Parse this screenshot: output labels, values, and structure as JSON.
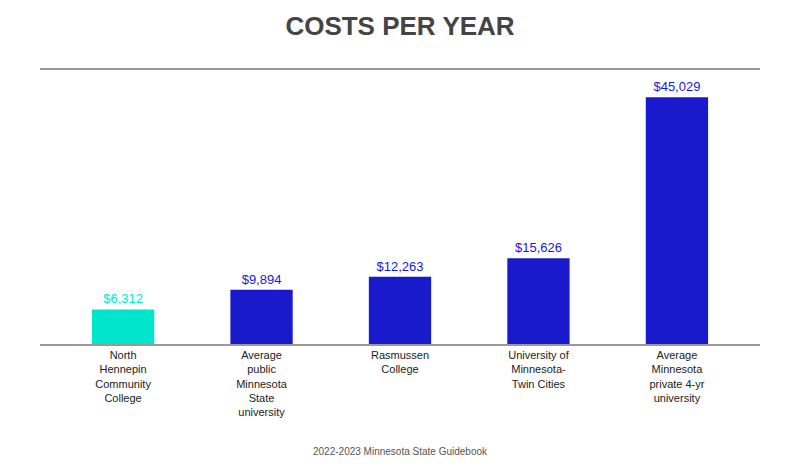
{
  "chart_data": {
    "type": "bar",
    "title": "COSTS PER YEAR",
    "categories": [
      "North\nHennepin\nCommunity\nCollege",
      "Average\npublic\nMinnesota\nState\nuniversity",
      "Rasmussen\nCollege",
      "University of\nMinnesota-\nTwin Cities",
      "Average\nMinnesota\nprivate 4-yr\nuniversity"
    ],
    "values": [
      6312,
      9894,
      12263,
      15626,
      45029
    ],
    "value_labels": [
      "$6,312",
      "$9,894",
      "$12,263",
      "$15,626",
      "$45,029"
    ],
    "data_labels": true,
    "colors": [
      "#00e5cc",
      "#1a1acd",
      "#1a1acd",
      "#1a1acd",
      "#1a1acd"
    ],
    "ylim": [
      0,
      50000
    ],
    "grid": false,
    "tick_labels": "x",
    "annotations": [
      "2022-2023 Minnesota State Guidebook"
    ]
  }
}
